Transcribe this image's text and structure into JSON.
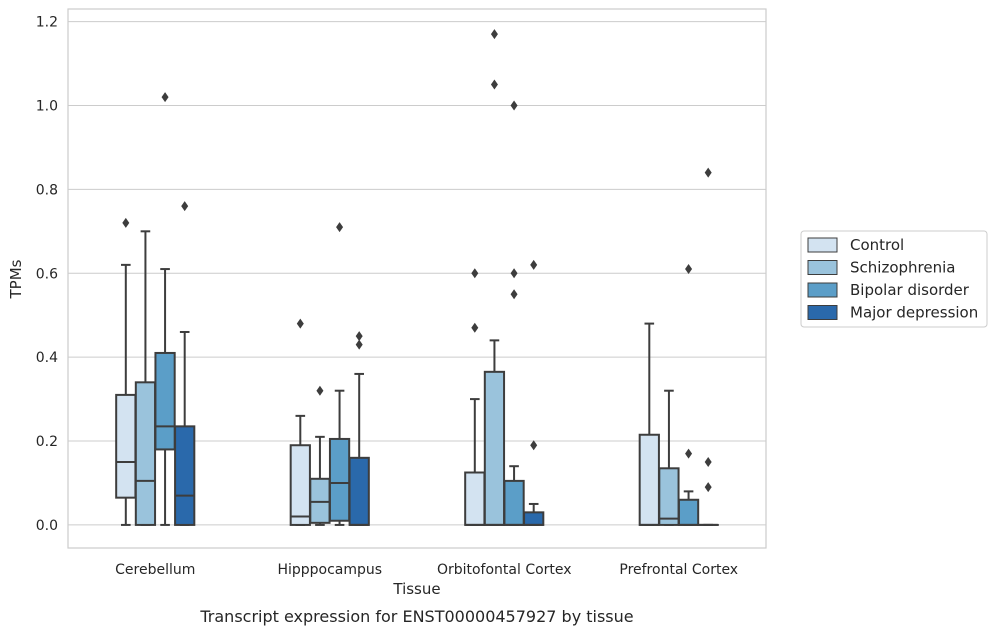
{
  "caption": "Transcript expression for ENST00000457927 by tissue",
  "chart_data": {
    "type": "box",
    "xlabel": "Tissue",
    "ylabel": "TPMs",
    "ylim": [
      -0.055,
      1.23
    ],
    "yticks": [
      "0.0",
      "0.2",
      "0.4",
      "0.6",
      "0.8",
      "1.0",
      "1.2"
    ],
    "grid": "horizontal",
    "legend_position": "right",
    "categories": [
      "Cerebellum",
      "Hipppocampus",
      "Orbitofontal Cortex",
      "Prefrontal Cortex"
    ],
    "series": [
      {
        "name": "Control",
        "color": "#d3e3f1",
        "boxes": [
          {
            "q1": 0.065,
            "median": 0.15,
            "q3": 0.31,
            "whisker_low": 0.0,
            "whisker_high": 0.62,
            "outliers": [
              0.72
            ]
          },
          {
            "q1": 0.0,
            "median": 0.02,
            "q3": 0.19,
            "whisker_low": 0.0,
            "whisker_high": 0.26,
            "outliers": [
              0.48
            ]
          },
          {
            "q1": 0.0,
            "median": 0.0,
            "q3": 0.125,
            "whisker_low": 0.0,
            "whisker_high": 0.3,
            "outliers": [
              0.47,
              0.6
            ]
          },
          {
            "q1": 0.0,
            "median": 0.0,
            "q3": 0.215,
            "whisker_low": 0.0,
            "whisker_high": 0.48,
            "outliers": []
          }
        ]
      },
      {
        "name": "Schizophrenia",
        "color": "#9ac3dc",
        "boxes": [
          {
            "q1": 0.0,
            "median": 0.105,
            "q3": 0.34,
            "whisker_low": 0.0,
            "whisker_high": 0.7,
            "outliers": []
          },
          {
            "q1": 0.005,
            "median": 0.055,
            "q3": 0.11,
            "whisker_low": 0.0,
            "whisker_high": 0.21,
            "outliers": [
              0.32
            ]
          },
          {
            "q1": 0.0,
            "median": 0.0,
            "q3": 0.365,
            "whisker_low": 0.0,
            "whisker_high": 0.44,
            "outliers": [
              1.05,
              1.17
            ]
          },
          {
            "q1": 0.0,
            "median": 0.015,
            "q3": 0.135,
            "whisker_low": 0.0,
            "whisker_high": 0.32,
            "outliers": []
          }
        ]
      },
      {
        "name": "Bipolar disorder",
        "color": "#5b9ec8",
        "boxes": [
          {
            "q1": 0.18,
            "median": 0.235,
            "q3": 0.41,
            "whisker_low": 0.0,
            "whisker_high": 0.61,
            "outliers": [
              1.02
            ]
          },
          {
            "q1": 0.01,
            "median": 0.1,
            "q3": 0.205,
            "whisker_low": 0.0,
            "whisker_high": 0.32,
            "outliers": [
              0.71
            ]
          },
          {
            "q1": 0.0,
            "median": 0.0,
            "q3": 0.105,
            "whisker_low": 0.0,
            "whisker_high": 0.14,
            "outliers": [
              0.55,
              0.6,
              1.0
            ]
          },
          {
            "q1": 0.0,
            "median": 0.0,
            "q3": 0.06,
            "whisker_low": 0.0,
            "whisker_high": 0.08,
            "outliers": [
              0.17,
              0.61
            ]
          }
        ]
      },
      {
        "name": "Major depression",
        "color": "#2a69ab",
        "boxes": [
          {
            "q1": 0.0,
            "median": 0.07,
            "q3": 0.235,
            "whisker_low": 0.0,
            "whisker_high": 0.46,
            "outliers": [
              0.76
            ]
          },
          {
            "q1": 0.0,
            "median": 0.0,
            "q3": 0.16,
            "whisker_low": 0.0,
            "whisker_high": 0.36,
            "outliers": [
              0.43,
              0.45
            ]
          },
          {
            "q1": 0.0,
            "median": 0.0,
            "q3": 0.03,
            "whisker_low": 0.0,
            "whisker_high": 0.05,
            "outliers": [
              0.19,
              0.62
            ]
          },
          {
            "q1": 0.0,
            "median": 0.0,
            "q3": 0.0,
            "whisker_low": 0.0,
            "whisker_high": 0.0,
            "outliers": [
              0.09,
              0.15,
              0.84
            ]
          }
        ]
      }
    ]
  }
}
